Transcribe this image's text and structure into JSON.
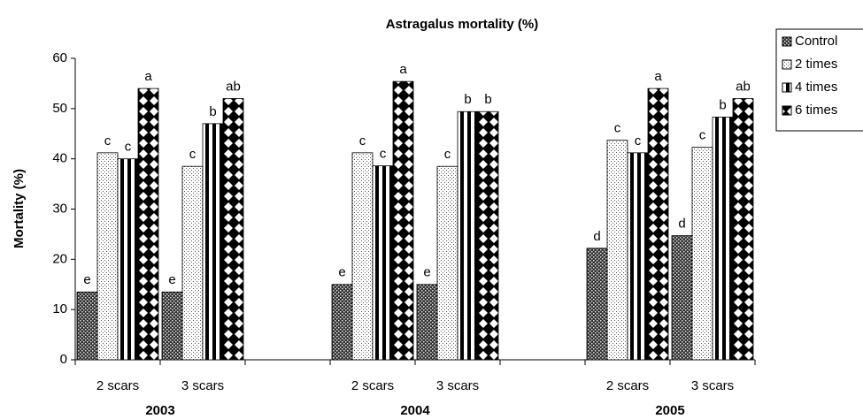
{
  "chart_data": {
    "type": "bar",
    "title": "Astragalus mortality (%)",
    "y_label": "Mortality (%)",
    "categories": [
      "2 scars",
      "3 scars",
      null,
      "2 scars",
      "3 scars",
      null,
      "2 scars",
      "3 scars"
    ],
    "groups": [
      "2003",
      "2004",
      "2005"
    ],
    "series": [
      {
        "name": "Control",
        "color": "#333333",
        "pattern": "checker",
        "values": [
          13.5,
          13.5,
          null,
          15,
          15,
          null,
          22.2,
          24.7
        ],
        "annotations": [
          "e",
          "e",
          null,
          "e",
          "e",
          null,
          "d",
          "d"
        ]
      },
      {
        "name": "2 times",
        "color": "#ffffff",
        "pattern": "dots",
        "values": [
          41.2,
          38.5,
          null,
          41.2,
          38.5,
          null,
          43.7,
          42.3
        ],
        "annotations": [
          "c",
          "c",
          null,
          "c",
          "c",
          null,
          "c",
          "c"
        ]
      },
      {
        "name": "4 times",
        "color": "#000000",
        "pattern": "vstripes",
        "values": [
          40,
          47,
          null,
          38.6,
          49.4,
          null,
          41.2,
          48.3
        ],
        "annotations": [
          "c",
          "b",
          null,
          "c",
          "b",
          null,
          "c",
          "b"
        ]
      },
      {
        "name": "6 times",
        "color": "#000000",
        "pattern": "diamonds",
        "values": [
          54,
          52,
          null,
          55.4,
          49.4,
          null,
          54,
          52
        ],
        "annotations": [
          "a",
          "ab",
          null,
          "a",
          "b",
          null,
          "a",
          "ab"
        ]
      }
    ],
    "ylim": [
      0,
      60
    ],
    "yticks": [
      0,
      10,
      20,
      30,
      40,
      50,
      60
    ],
    "grid": false,
    "legend": "right"
  }
}
